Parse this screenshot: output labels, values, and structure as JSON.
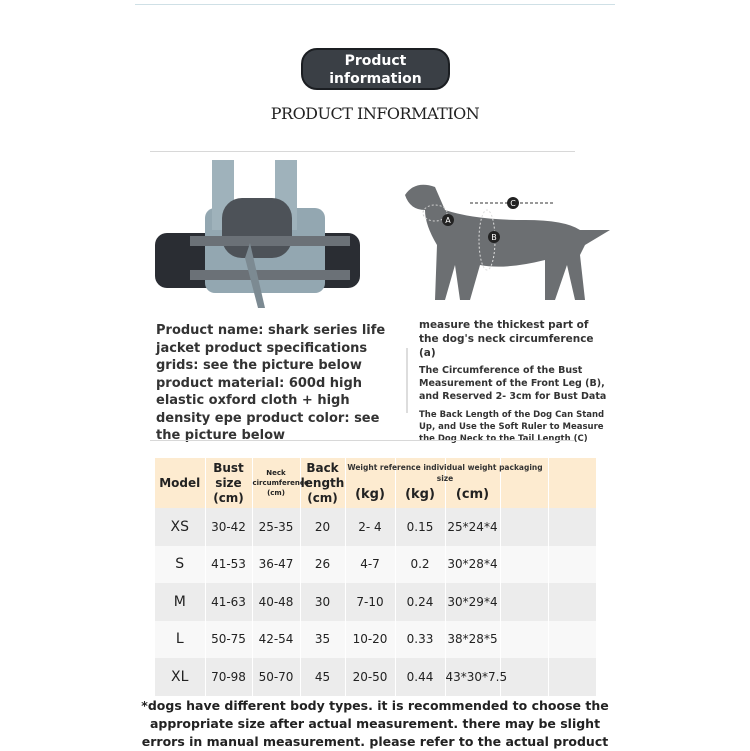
{
  "header": {
    "badge": "Product information",
    "title": "PRODUCT INFORMATION"
  },
  "description": "Product name: shark series life jacket product specifications grids: see the picture below product material: 600d high elastic oxford cloth + high density epe product color: see the picture below",
  "measure_notes": [
    "measure the thickest part of the dog's neck circumference (a)",
    "The Circumference of the Bust Measurement of the Front Leg (B), and Reserved 2- 3cm for Bust Data",
    "The Back Length of the Dog Can Stand Up, and Use the Soft Ruler to Measure the Dog Neck to the Tail Length (C)"
  ],
  "diagram_labels": {
    "a": "A",
    "b": "B",
    "c": "C"
  },
  "table": {
    "weight_header": "Weight reference individual weight packaging size",
    "headers": [
      "Model",
      "Bust size (cm)",
      "Neck circumference (cm)",
      "Back length (cm)",
      "(kg)",
      "(kg)",
      "(cm)",
      "",
      ""
    ],
    "rows": [
      [
        "XS",
        "30-42",
        "25-35",
        "20",
        "2- 4",
        "0.15",
        "25*24*4"
      ],
      [
        "S",
        "41-53",
        "36-47",
        "26",
        "4-7",
        "0.2",
        "30*28*4"
      ],
      [
        "M",
        "41-63",
        "40-48",
        "30",
        "7-10",
        "0.24",
        "30*29*4"
      ],
      [
        "L",
        "50-75",
        "42-54",
        "35",
        "10-20",
        "0.33",
        "38*28*5"
      ],
      [
        "XL",
        "70-98",
        "50-70",
        "45",
        "20-50",
        "0.44",
        "43*30*7.5"
      ]
    ]
  },
  "footnote": "*dogs have different body types. it is recommended to choose the appropriate size after actual measurement. there may be slight errors in manual measurement. please refer to the actual product",
  "colors": {
    "badge": "#3a3f45",
    "table_header": "#fdebd0",
    "vest": "#8fa3ad"
  }
}
